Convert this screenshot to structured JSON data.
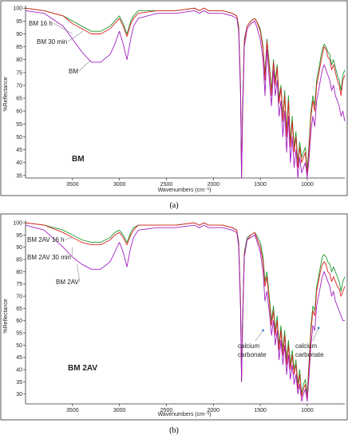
{
  "chart_data": [
    {
      "type": "line",
      "panel_label": "BM",
      "caption": "(a)",
      "xlabel": "Wavenumbers (cm⁻¹)",
      "ylabel": "%Reflectance",
      "xlim": [
        4000,
        600
      ],
      "ylim": [
        34,
        101
      ],
      "x_reversed": true,
      "xticks": [
        3500,
        3000,
        2500,
        2000,
        1500,
        1000
      ],
      "yticks": [
        35,
        40,
        45,
        50,
        55,
        60,
        65,
        70,
        75,
        80,
        85,
        90,
        95,
        100
      ],
      "grid": false,
      "legend": "none",
      "annotations": [
        {
          "text": "BM 16 h",
          "series": 0
        },
        {
          "text": "BM 30 min",
          "series": 1
        },
        {
          "text": "BM",
          "series": 2
        }
      ],
      "series": [
        {
          "color": "#1f9a2e",
          "x": [
            4000,
            3800,
            3600,
            3500,
            3400,
            3300,
            3200,
            3100,
            3050,
            3000,
            2960,
            2920,
            2880,
            2850,
            2800,
            2600,
            2400,
            2200,
            2150,
            2100,
            2050,
            2000,
            1900,
            1800,
            1750,
            1730,
            1710,
            1700,
            1690,
            1670,
            1640,
            1600,
            1560,
            1540,
            1500,
            1470,
            1450,
            1430,
            1400,
            1380,
            1360,
            1340,
            1320,
            1300,
            1280,
            1260,
            1240,
            1220,
            1200,
            1180,
            1160,
            1140,
            1120,
            1100,
            1080,
            1060,
            1040,
            1020,
            1000,
            980,
            960,
            940,
            920,
            900,
            880,
            860,
            840,
            820,
            800,
            780,
            760,
            740,
            720,
            700,
            680,
            660,
            640,
            620,
            600
          ],
          "y": [
            100,
            99,
            97,
            95,
            93,
            91,
            91,
            93,
            95,
            97,
            94,
            90,
            95,
            97,
            99,
            99,
            99,
            100,
            99,
            100,
            99,
            99,
            99,
            98,
            97,
            93,
            70,
            35,
            60,
            88,
            93,
            95,
            96,
            95,
            92,
            85,
            74,
            88,
            77,
            68,
            80,
            72,
            78,
            65,
            70,
            58,
            68,
            52,
            66,
            48,
            58,
            46,
            52,
            40,
            48,
            42,
            44,
            46,
            37,
            48,
            60,
            66,
            62,
            72,
            76,
            80,
            84,
            86,
            85,
            83,
            82,
            78,
            80,
            77,
            74,
            72,
            68,
            74,
            76
          ]
        },
        {
          "color": "#e02020",
          "x": [
            4000,
            3800,
            3600,
            3500,
            3400,
            3300,
            3200,
            3100,
            3050,
            3000,
            2960,
            2920,
            2880,
            2850,
            2800,
            2600,
            2400,
            2200,
            2150,
            2100,
            2050,
            2000,
            1900,
            1800,
            1750,
            1730,
            1710,
            1700,
            1690,
            1670,
            1640,
            1600,
            1560,
            1540,
            1500,
            1470,
            1450,
            1430,
            1400,
            1380,
            1360,
            1340,
            1320,
            1300,
            1280,
            1260,
            1240,
            1220,
            1200,
            1180,
            1160,
            1140,
            1120,
            1100,
            1080,
            1060,
            1040,
            1020,
            1000,
            980,
            960,
            940,
            920,
            900,
            880,
            860,
            840,
            820,
            800,
            780,
            760,
            740,
            720,
            700,
            680,
            660,
            640,
            620,
            600
          ],
          "y": [
            100,
            99,
            97,
            94,
            92,
            90,
            90,
            92,
            94,
            96,
            93,
            89,
            94,
            96,
            98,
            99,
            99,
            100,
            99,
            100,
            99,
            99,
            99,
            98,
            97,
            92,
            68,
            34,
            58,
            87,
            93,
            95,
            96,
            95,
            91,
            84,
            72,
            87,
            75,
            66,
            79,
            70,
            77,
            63,
            69,
            56,
            66,
            50,
            64,
            46,
            56,
            44,
            50,
            38,
            46,
            40,
            42,
            44,
            35,
            46,
            58,
            64,
            60,
            70,
            74,
            78,
            82,
            85,
            84,
            81,
            80,
            76,
            78,
            75,
            72,
            70,
            66,
            72,
            74
          ]
        },
        {
          "color": "#a020c0",
          "x": [
            4000,
            3800,
            3600,
            3500,
            3400,
            3300,
            3200,
            3100,
            3050,
            3000,
            2960,
            2920,
            2880,
            2850,
            2800,
            2600,
            2400,
            2200,
            2150,
            2100,
            2050,
            2000,
            1900,
            1800,
            1750,
            1730,
            1710,
            1700,
            1690,
            1670,
            1640,
            1600,
            1560,
            1540,
            1500,
            1470,
            1450,
            1430,
            1400,
            1380,
            1360,
            1340,
            1320,
            1300,
            1280,
            1260,
            1240,
            1220,
            1200,
            1180,
            1160,
            1140,
            1120,
            1100,
            1080,
            1060,
            1040,
            1020,
            1000,
            980,
            960,
            940,
            920,
            900,
            880,
            860,
            840,
            820,
            800,
            780,
            760,
            740,
            720,
            700,
            680,
            660,
            640,
            620,
            600
          ],
          "y": [
            99,
            98,
            93,
            88,
            83,
            79,
            79,
            82,
            86,
            91,
            86,
            80,
            88,
            93,
            96,
            98,
            98,
            99,
            98,
            99,
            98,
            98,
            98,
            97,
            96,
            91,
            66,
            34,
            56,
            85,
            92,
            94,
            95,
            93,
            88,
            80,
            66,
            84,
            70,
            62,
            76,
            66,
            72,
            58,
            64,
            50,
            60,
            44,
            58,
            40,
            50,
            38,
            45,
            34,
            42,
            36,
            38,
            40,
            34,
            42,
            52,
            58,
            54,
            64,
            68,
            72,
            76,
            78,
            76,
            74,
            72,
            68,
            70,
            66,
            64,
            62,
            58,
            60,
            56
          ]
        }
      ]
    },
    {
      "type": "line",
      "panel_label": "BM 2AV",
      "caption": "(b)",
      "xlabel": "Wavenumbers (cm⁻¹)",
      "ylabel": "%Reflectance",
      "xlim": [
        4000,
        600
      ],
      "ylim": [
        26,
        101
      ],
      "x_reversed": true,
      "xticks": [
        3500,
        3000,
        2500,
        2000,
        1500,
        1000
      ],
      "yticks": [
        30,
        35,
        40,
        45,
        50,
        55,
        60,
        65,
        70,
        75,
        80,
        85,
        90,
        95,
        100
      ],
      "grid": false,
      "legend": "none",
      "annotations": [
        {
          "text": "BM 2AV 16 h",
          "series": 0
        },
        {
          "text": "BM 2AV 30 min",
          "series": 1
        },
        {
          "text": "BM 2AV",
          "series": 2
        },
        {
          "text": "calcium carbonate",
          "x": 1430,
          "y": 47
        },
        {
          "text": "calcium carbonate",
          "x": 875,
          "y": 50
        }
      ],
      "series": [
        {
          "color": "#1f9a2e",
          "x": [
            4000,
            3800,
            3600,
            3500,
            3400,
            3300,
            3200,
            3100,
            3050,
            3000,
            2960,
            2920,
            2880,
            2850,
            2800,
            2600,
            2400,
            2200,
            2150,
            2100,
            2050,
            2000,
            1900,
            1800,
            1750,
            1730,
            1710,
            1700,
            1690,
            1670,
            1640,
            1600,
            1560,
            1540,
            1500,
            1470,
            1450,
            1430,
            1400,
            1380,
            1360,
            1340,
            1320,
            1300,
            1280,
            1260,
            1240,
            1220,
            1200,
            1180,
            1160,
            1140,
            1120,
            1100,
            1080,
            1060,
            1040,
            1020,
            1000,
            980,
            960,
            940,
            920,
            900,
            880,
            860,
            840,
            820,
            800,
            780,
            760,
            740,
            720,
            700,
            680,
            660,
            640,
            620,
            600
          ],
          "y": [
            100,
            99,
            97,
            95,
            93,
            92,
            92,
            94,
            96,
            97,
            95,
            92,
            96,
            98,
            99,
            99,
            99,
            100,
            99,
            100,
            99,
            99,
            99,
            98,
            97,
            92,
            68,
            36,
            60,
            88,
            94,
            95,
            96,
            95,
            92,
            86,
            76,
            80,
            68,
            60,
            66,
            56,
            62,
            50,
            58,
            48,
            56,
            44,
            52,
            42,
            48,
            40,
            44,
            34,
            40,
            30,
            34,
            36,
            30,
            44,
            58,
            66,
            64,
            74,
            78,
            82,
            86,
            87,
            86,
            84,
            83,
            80,
            82,
            80,
            78,
            76,
            72,
            76,
            78
          ]
        },
        {
          "color": "#e02020",
          "x": [
            4000,
            3800,
            3600,
            3500,
            3400,
            3300,
            3200,
            3100,
            3050,
            3000,
            2960,
            2920,
            2880,
            2850,
            2800,
            2600,
            2400,
            2200,
            2150,
            2100,
            2050,
            2000,
            1900,
            1800,
            1750,
            1730,
            1710,
            1700,
            1690,
            1670,
            1640,
            1600,
            1560,
            1540,
            1500,
            1470,
            1450,
            1430,
            1400,
            1380,
            1360,
            1340,
            1320,
            1300,
            1280,
            1260,
            1240,
            1220,
            1200,
            1180,
            1160,
            1140,
            1120,
            1100,
            1080,
            1060,
            1040,
            1020,
            1000,
            980,
            960,
            940,
            920,
            900,
            880,
            860,
            840,
            820,
            800,
            780,
            760,
            740,
            720,
            700,
            680,
            660,
            640,
            620,
            600
          ],
          "y": [
            100,
            99,
            96,
            94,
            92,
            91,
            91,
            93,
            95,
            96,
            94,
            91,
            95,
            97,
            99,
            99,
            99,
            100,
            99,
            100,
            99,
            99,
            99,
            98,
            97,
            91,
            66,
            35,
            58,
            87,
            93,
            95,
            96,
            94,
            90,
            84,
            74,
            78,
            66,
            58,
            64,
            54,
            60,
            48,
            56,
            46,
            54,
            42,
            50,
            40,
            46,
            38,
            42,
            32,
            38,
            29,
            32,
            34,
            28,
            42,
            56,
            64,
            62,
            72,
            76,
            80,
            83,
            84,
            83,
            80,
            79,
            76,
            78,
            76,
            74,
            73,
            70,
            72,
            74
          ]
        },
        {
          "color": "#a020c0",
          "x": [
            4000,
            3800,
            3600,
            3500,
            3400,
            3300,
            3200,
            3100,
            3050,
            3000,
            2960,
            2920,
            2880,
            2850,
            2800,
            2600,
            2400,
            2200,
            2150,
            2100,
            2050,
            2000,
            1900,
            1800,
            1750,
            1730,
            1710,
            1700,
            1690,
            1670,
            1640,
            1600,
            1560,
            1540,
            1500,
            1470,
            1450,
            1430,
            1400,
            1380,
            1360,
            1340,
            1320,
            1300,
            1280,
            1260,
            1240,
            1220,
            1200,
            1180,
            1160,
            1140,
            1120,
            1100,
            1080,
            1060,
            1040,
            1020,
            1000,
            980,
            960,
            940,
            920,
            900,
            880,
            860,
            840,
            820,
            800,
            780,
            760,
            740,
            720,
            700,
            680,
            660,
            640,
            620,
            600
          ],
          "y": [
            99,
            97,
            90,
            86,
            83,
            81,
            81,
            84,
            88,
            92,
            88,
            82,
            90,
            94,
            97,
            98,
            98,
            99,
            98,
            99,
            98,
            98,
            98,
            97,
            96,
            90,
            64,
            35,
            56,
            86,
            93,
            94,
            95,
            93,
            88,
            80,
            68,
            72,
            62,
            54,
            60,
            50,
            56,
            44,
            52,
            42,
            50,
            38,
            46,
            36,
            42,
            34,
            38,
            30,
            34,
            27,
            30,
            32,
            27,
            38,
            50,
            58,
            56,
            66,
            70,
            74,
            78,
            80,
            78,
            76,
            74,
            70,
            72,
            68,
            66,
            64,
            62,
            60,
            60
          ]
        }
      ]
    }
  ]
}
